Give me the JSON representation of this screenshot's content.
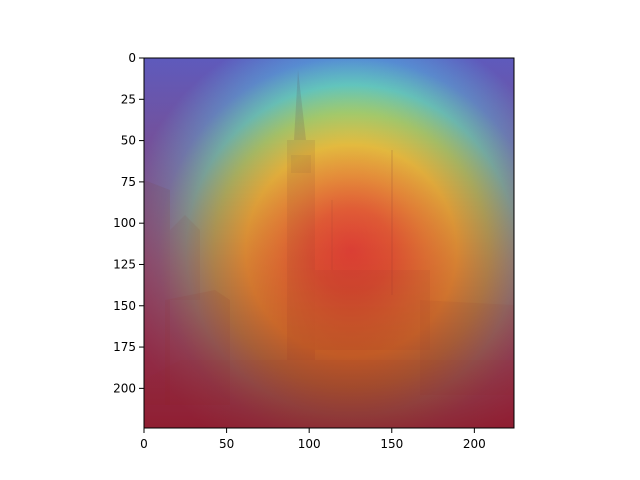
{
  "figure": {
    "image_description_kind": "attention/heatmap overlay on a photo of a town square with a tall bell tower",
    "colormap": "jet",
    "axes": {
      "x_ticks": [
        "0",
        "50",
        "100",
        "150",
        "200"
      ],
      "y_ticks": [
        "0",
        "25",
        "50",
        "75",
        "100",
        "125",
        "150",
        "175",
        "200"
      ],
      "x_range": [
        0,
        224
      ],
      "y_range": [
        0,
        224
      ],
      "y_inverted": true,
      "grid": false
    }
  }
}
